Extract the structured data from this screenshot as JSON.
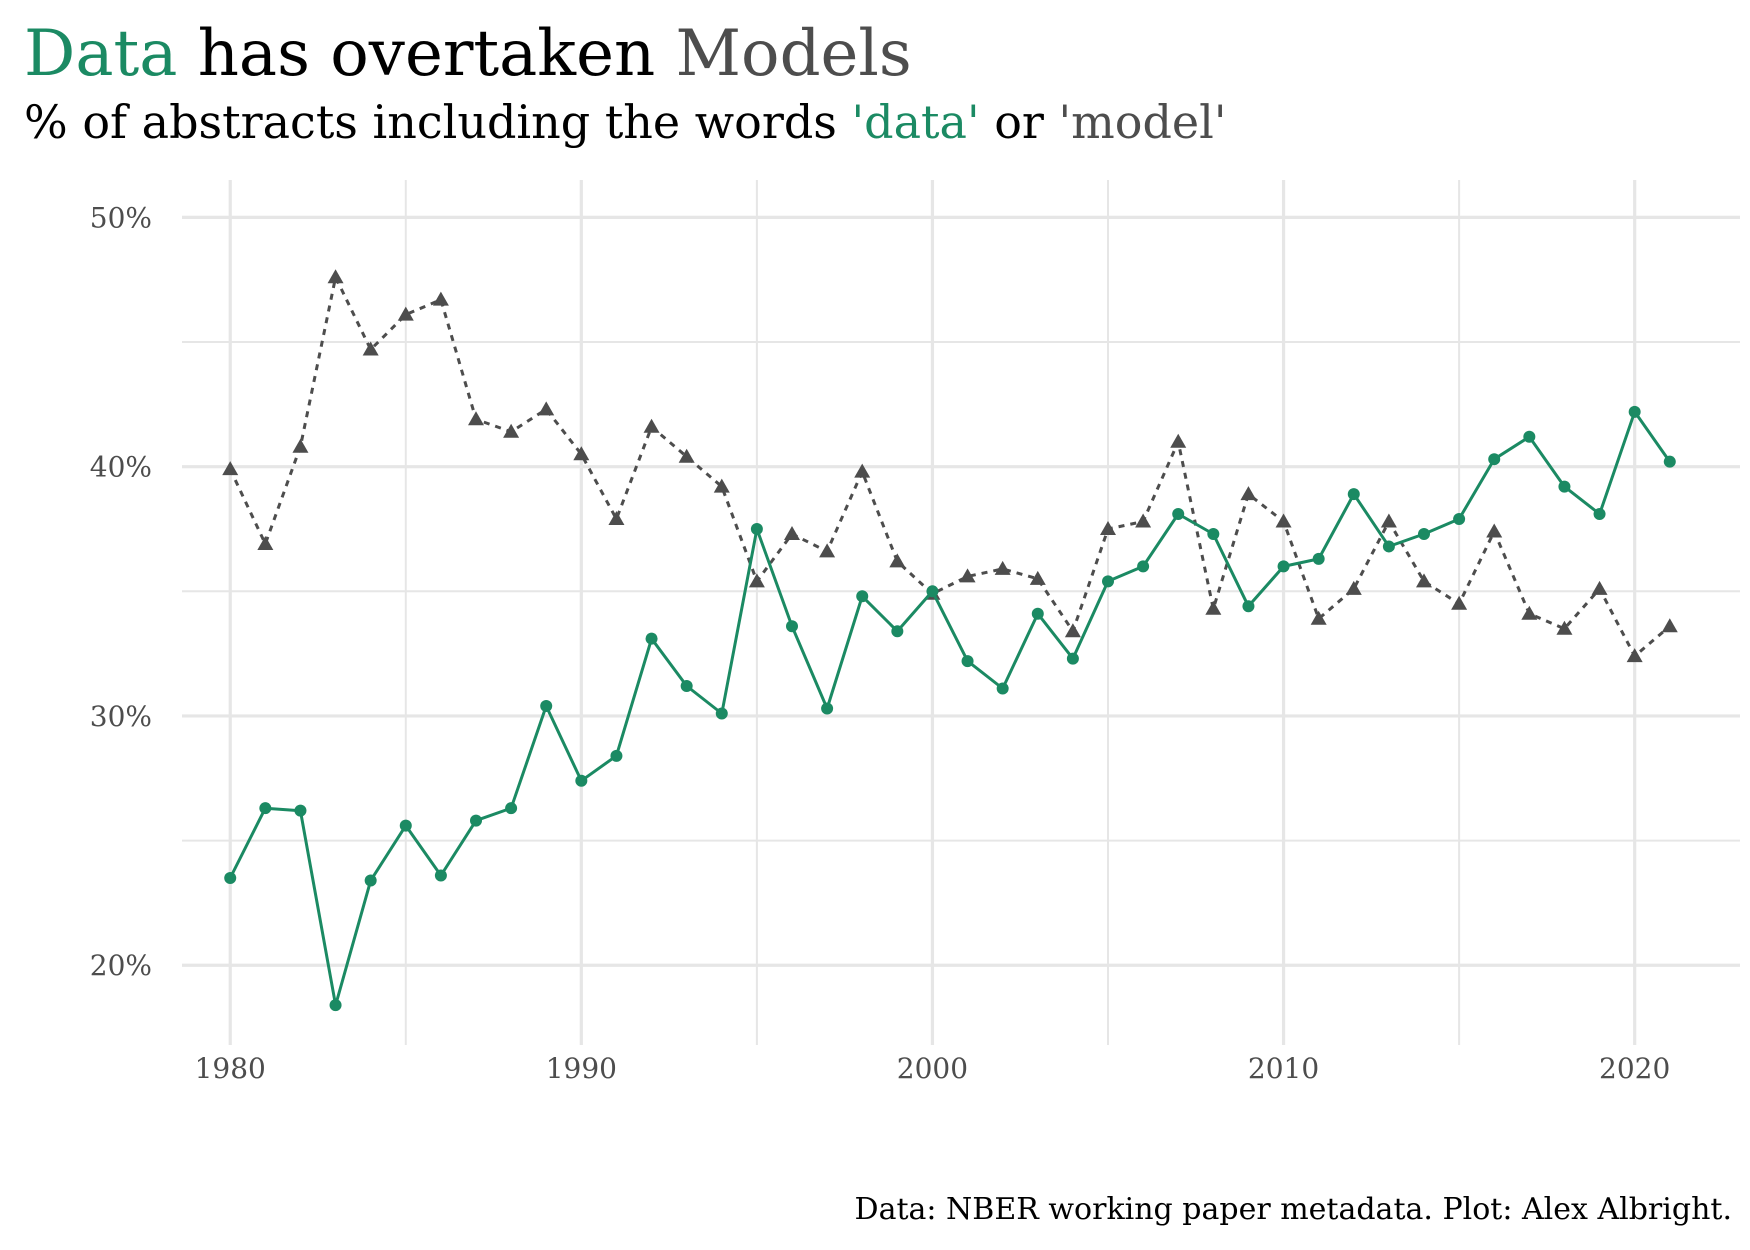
{
  "title": {
    "part1": "Data",
    "part2": " has overtaken ",
    "part3": "Models"
  },
  "subtitle": {
    "part1": "% of abstracts including the words ",
    "part2": "'data'",
    "part3": " or ",
    "part4": "'model'"
  },
  "caption": "Data: NBER working paper metadata. Plot: Alex Albright.",
  "colors": {
    "data": "#1b8a63",
    "model": "#4d4d4d",
    "grid": "#e6e6e6"
  },
  "chart_data": {
    "type": "line",
    "x": [
      1980,
      1981,
      1982,
      1983,
      1984,
      1985,
      1986,
      1987,
      1988,
      1989,
      1990,
      1991,
      1992,
      1993,
      1994,
      1995,
      1996,
      1997,
      1998,
      1999,
      2000,
      2001,
      2002,
      2003,
      2004,
      2005,
      2006,
      2007,
      2008,
      2009,
      2010,
      2011,
      2012,
      2013,
      2014,
      2015,
      2016,
      2017,
      2018,
      2019,
      2020,
      2021
    ],
    "series": [
      {
        "name": "'data'",
        "marker": "circle",
        "line": "solid",
        "color": "#1b8a63",
        "values": [
          23.5,
          26.3,
          26.2,
          18.4,
          23.4,
          25.6,
          23.6,
          25.8,
          26.3,
          30.4,
          27.4,
          28.4,
          33.1,
          31.2,
          30.1,
          37.5,
          33.6,
          30.3,
          34.8,
          33.4,
          35.0,
          32.2,
          31.1,
          34.1,
          32.3,
          35.4,
          36.0,
          38.1,
          37.3,
          34.4,
          36.0,
          36.3,
          38.9,
          36.8,
          37.3,
          37.9,
          40.3,
          41.2,
          39.2,
          38.1,
          42.2,
          40.2
        ]
      },
      {
        "name": "'model'",
        "marker": "triangle",
        "line": "dotted",
        "color": "#4d4d4d",
        "values": [
          39.9,
          36.9,
          40.8,
          47.6,
          44.7,
          46.1,
          46.7,
          41.9,
          41.4,
          42.3,
          40.5,
          37.9,
          41.6,
          40.4,
          39.2,
          35.4,
          37.3,
          36.6,
          39.8,
          36.2,
          34.9,
          35.6,
          35.9,
          35.5,
          33.4,
          37.5,
          37.8,
          41.0,
          34.3,
          38.9,
          37.8,
          33.9,
          35.1,
          37.8,
          35.4,
          34.5,
          37.4,
          34.1,
          33.5,
          35.1,
          32.4,
          33.6
        ]
      }
    ],
    "xlim": [
      1978,
      2023
    ],
    "ylim": [
      16.8,
      51.5
    ],
    "x_ticks": [
      1980,
      1990,
      2000,
      2010,
      2020
    ],
    "x_tick_labels": [
      "1980",
      "1990",
      "2000",
      "2010",
      "2020"
    ],
    "y_ticks": [
      20,
      30,
      40,
      50
    ],
    "y_tick_labels": [
      "20%",
      "30%",
      "40%",
      "50%"
    ],
    "y_minor_ticks": [
      25,
      35,
      45
    ],
    "grid": true,
    "legend": "none",
    "xlabel": "",
    "ylabel": ""
  }
}
